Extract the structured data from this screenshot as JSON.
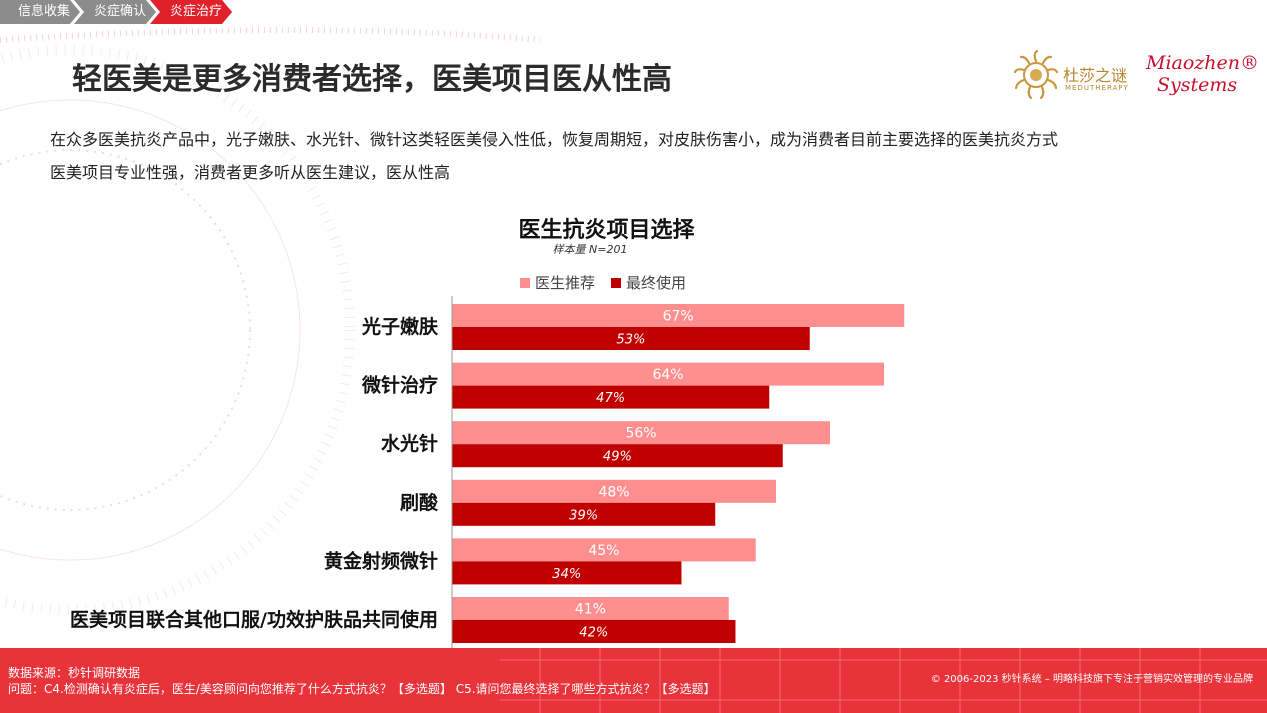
{
  "breadcrumb": [
    {
      "label": "信息收集",
      "state": "done"
    },
    {
      "label": "炎症确认",
      "state": "done"
    },
    {
      "label": "炎症治疗",
      "state": "active"
    }
  ],
  "page_title": "轻医美是更多消费者选择，医美项目医从性高",
  "logo": {
    "cn_name": "杜莎之谜",
    "sub": "MEDUTHERAPY",
    "en_line1": "Miaozhen®",
    "en_line2": "Systems"
  },
  "summary": [
    "在众多医美抗炎产品中，光子嫩肤、水光针、微针这类轻医美侵入性低，恢复周期短，对皮肤伤害小，成为消费者目前主要选择的医美抗炎方式",
    "医美项目专业性强，消费者更多听从医生建议，医从性高"
  ],
  "colors": {
    "recommend": "#ff8f8f",
    "use": "#c00000",
    "accent": "#e9333b"
  },
  "chart_data": {
    "type": "bar",
    "orientation": "horizontal",
    "title": "医生抗炎项目选择",
    "subtitle": "样本量 N=201",
    "legend_position": "top",
    "categories": [
      "光子嫩肤",
      "微针治疗",
      "水光针",
      "刷酸",
      "黄金射频微针",
      "医美项目联合其他口服/功效护肤品共同使用"
    ],
    "series": [
      {
        "name": "医生推荐",
        "values": [
          67,
          64,
          56,
          48,
          45,
          41
        ],
        "labels": [
          "67%",
          "64%",
          "56%",
          "48%",
          "45%",
          "41%"
        ]
      },
      {
        "name": "最终使用",
        "values": [
          53,
          47,
          49,
          39,
          34,
          42
        ],
        "labels": [
          "53%",
          "47%",
          "49%",
          "39%",
          "34%",
          "42%"
        ]
      }
    ],
    "xlim": [
      0,
      100
    ],
    "unit": "%"
  },
  "footer": {
    "source": "数据来源：秒针调研数据",
    "question": "问题：C4.检测确认有炎症后，医生/美容顾问向您推荐了什么方式抗炎？【多选题】  C5.请问您最终选择了哪些方式抗炎？【多选题】",
    "copyright": "© 2006-2023  秒针系统 – 明略科技旗下专注于营销实效管理的专业品牌"
  }
}
